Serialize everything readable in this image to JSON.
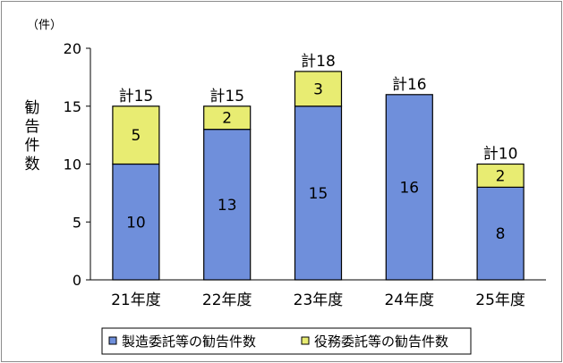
{
  "chart_data": {
    "type": "bar",
    "stacked": true,
    "unit_label": "（件）",
    "ylabel": "勧告件数",
    "ylim": [
      0,
      20
    ],
    "yticks": [
      0,
      5,
      10,
      15,
      20
    ],
    "categories": [
      "21年度",
      "22年度",
      "23年度",
      "24年度",
      "25年度"
    ],
    "series": [
      {
        "name": "製造委託等の勧告件数",
        "color": "#6f8fdb",
        "values": [
          10,
          13,
          15,
          16,
          8
        ]
      },
      {
        "name": "役務委託等の勧告件数",
        "color": "#e8ec72",
        "values": [
          5,
          2,
          3,
          null,
          2
        ]
      }
    ],
    "totals": [
      "計15",
      "計15",
      "計18",
      "計16",
      "計10"
    ],
    "legend_position": "bottom",
    "grid": false
  }
}
